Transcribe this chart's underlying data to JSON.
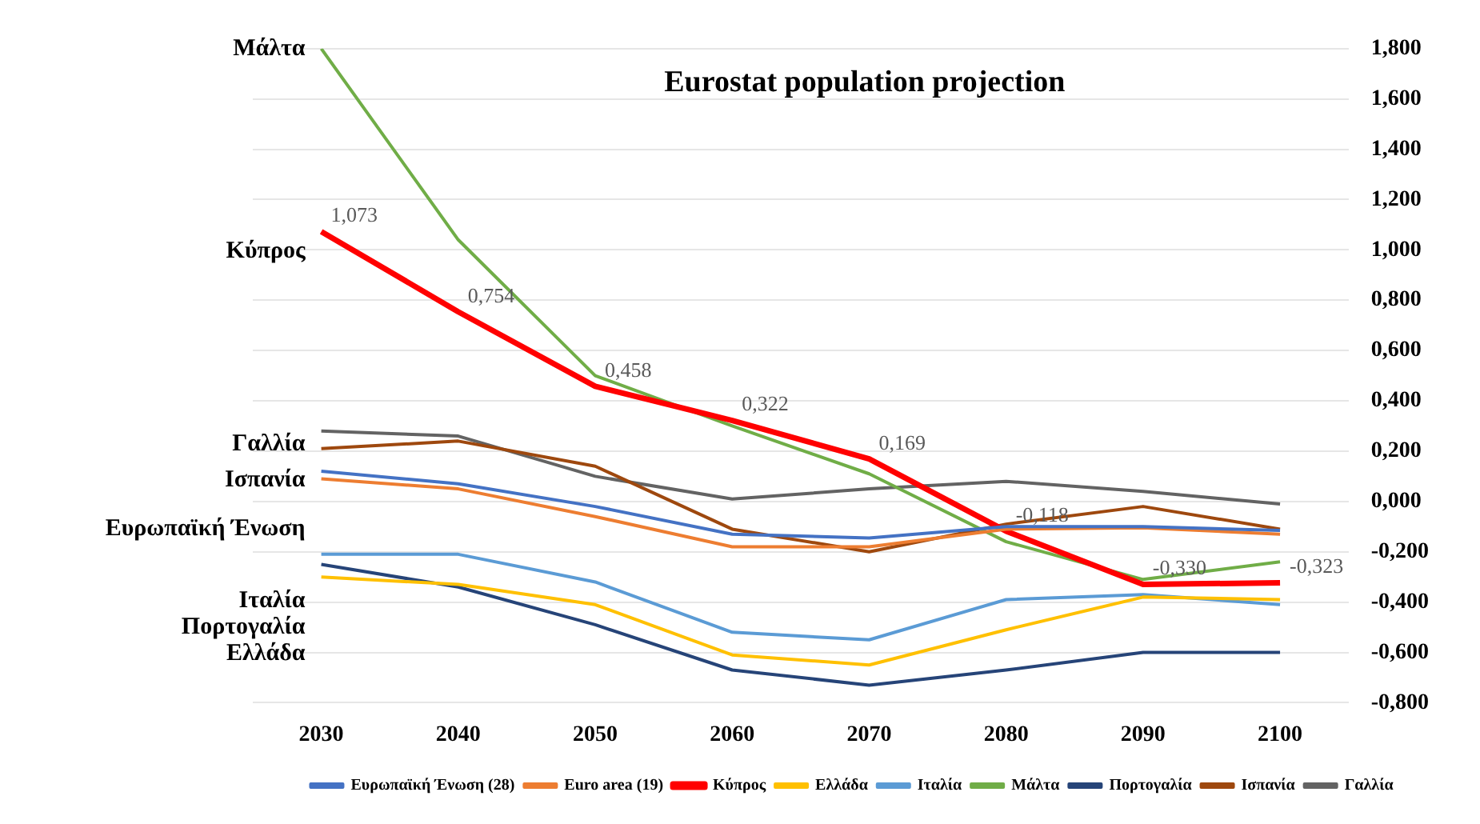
{
  "chart_data": {
    "type": "line",
    "title": "Eurostat population projection",
    "categories": [
      "2030",
      "2040",
      "2050",
      "2060",
      "2070",
      "2080",
      "2090",
      "2100"
    ],
    "series": [
      {
        "name": "Ευρωπαϊκή Ένωση (28)",
        "color": "#4472c4",
        "values": [
          0.12,
          0.07,
          -0.02,
          -0.13,
          -0.145,
          -0.1,
          -0.1,
          -0.115
        ]
      },
      {
        "name": "Euro area (19)",
        "color": "#ed7d31",
        "values": [
          0.09,
          0.05,
          -0.06,
          -0.18,
          -0.18,
          -0.11,
          -0.105,
          -0.13
        ]
      },
      {
        "name": "Κύπρος",
        "color": "#ff0000",
        "values": [
          1.073,
          0.754,
          0.458,
          0.322,
          0.169,
          -0.118,
          -0.33,
          -0.323
        ],
        "value_labels": [
          "1,073",
          "0,754",
          "0,458",
          "0,322",
          "0,169",
          "-0,118",
          "-0,330",
          "-0,323"
        ]
      },
      {
        "name": "Ελλάδα",
        "color": "#ffc000",
        "values": [
          -0.3,
          -0.33,
          -0.41,
          -0.61,
          -0.65,
          -0.51,
          -0.38,
          -0.39
        ]
      },
      {
        "name": "Ιταλία",
        "color": "#5b9bd5",
        "values": [
          -0.21,
          -0.21,
          -0.32,
          -0.52,
          -0.55,
          -0.39,
          -0.37,
          -0.41
        ]
      },
      {
        "name": "Μάλτα",
        "color": "#70ad47",
        "values": [
          1.8,
          1.04,
          0.5,
          0.3,
          0.11,
          -0.16,
          -0.31,
          -0.24
        ]
      },
      {
        "name": "Πορτογαλία",
        "color": "#264478",
        "values": [
          -0.25,
          -0.34,
          -0.49,
          -0.67,
          -0.73,
          -0.67,
          -0.6,
          -0.6
        ]
      },
      {
        "name": "Ισπανία",
        "color": "#9e480e",
        "values": [
          0.21,
          0.24,
          0.14,
          -0.11,
          -0.2,
          -0.09,
          -0.02,
          -0.11
        ]
      },
      {
        "name": "Γαλλία",
        "color": "#636363",
        "values": [
          0.28,
          0.26,
          0.1,
          0.01,
          0.05,
          0.08,
          0.04,
          -0.01
        ]
      }
    ],
    "ylim": [
      -0.8,
      1.8
    ],
    "yticks": [
      {
        "value": -0.8,
        "label": "-0,800"
      },
      {
        "value": -0.6,
        "label": "-0,600"
      },
      {
        "value": -0.4,
        "label": "-0,400"
      },
      {
        "value": -0.2,
        "label": "-0,200"
      },
      {
        "value": 0,
        "label": "0,000"
      },
      {
        "value": 0.2,
        "label": "0,200"
      },
      {
        "value": 0.4,
        "label": "0,400"
      },
      {
        "value": 0.6,
        "label": "0,600"
      },
      {
        "value": 0.8,
        "label": "0,800"
      },
      {
        "value": 1.0,
        "label": "1,000"
      },
      {
        "value": 1.2,
        "label": "1,200"
      },
      {
        "value": 1.4,
        "label": "1,400"
      },
      {
        "value": 1.6,
        "label": "1,600"
      },
      {
        "value": 1.8,
        "label": "1,800"
      }
    ],
    "annotations": [
      "Μάλτα",
      "Κύπρος",
      "Γαλλία",
      "Ισπανία",
      "Ευρωπαϊκή Ένωση",
      "Ιταλία",
      "Πορτογαλία",
      "Ελλάδα"
    ],
    "grid": "y",
    "legend": "bottom",
    "marker": "none",
    "line_style": "solid"
  }
}
